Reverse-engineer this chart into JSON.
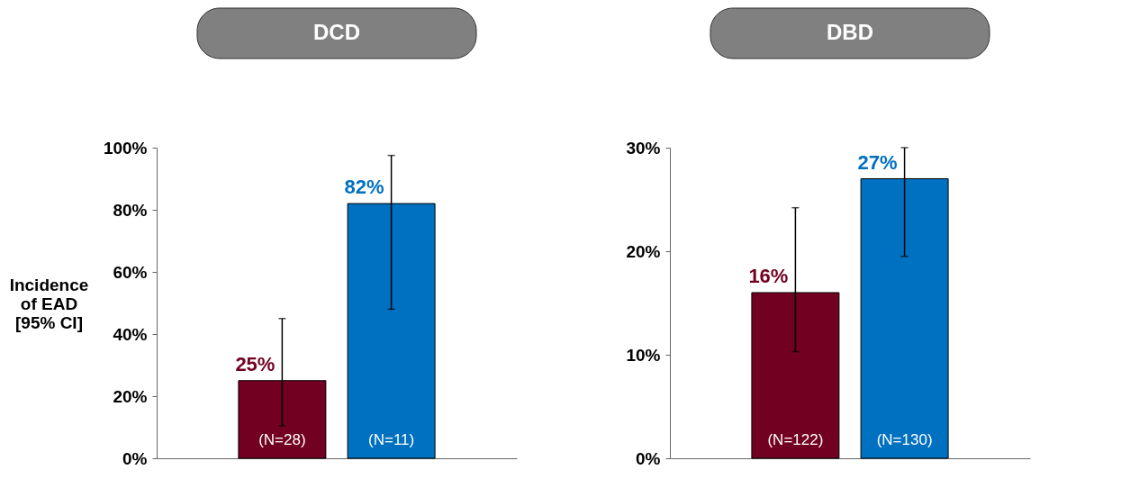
{
  "chart_data": [
    {
      "type": "bar",
      "title": "DCD",
      "ylabel": "Incidence\nof EAD\n[95% CI]",
      "categories": [
        "(N=28)",
        "(N=11)"
      ],
      "values": [
        25,
        82
      ],
      "colors": [
        "#720020",
        "#0070c0"
      ],
      "value_labels": [
        "25%",
        "82%"
      ],
      "errors": [
        [
          10.5,
          45
        ],
        [
          48,
          97.5
        ]
      ],
      "ylim": [
        0,
        100
      ],
      "yticks": [
        {
          "value": 0,
          "label": "0%"
        },
        {
          "value": 20,
          "label": "20%"
        },
        {
          "value": 40,
          "label": "40%"
        },
        {
          "value": 60,
          "label": "60%"
        },
        {
          "value": 80,
          "label": "80%"
        },
        {
          "value": 100,
          "label": "100%"
        }
      ],
      "grid": false
    },
    {
      "type": "bar",
      "title": "DBD",
      "categories": [
        "(N=122)",
        "(N=130)"
      ],
      "values": [
        16,
        27
      ],
      "colors": [
        "#720020",
        "#0070c0"
      ],
      "value_labels": [
        "16%",
        "27%"
      ],
      "errors": [
        [
          10.3,
          24.2
        ],
        [
          19.5,
          30
        ]
      ],
      "ylim": [
        0,
        30
      ],
      "yticks": [
        {
          "value": 0,
          "label": "0%"
        },
        {
          "value": 10,
          "label": "10%"
        },
        {
          "value": 20,
          "label": "20%"
        },
        {
          "value": 30,
          "label": "30%"
        }
      ],
      "grid": false
    }
  ]
}
